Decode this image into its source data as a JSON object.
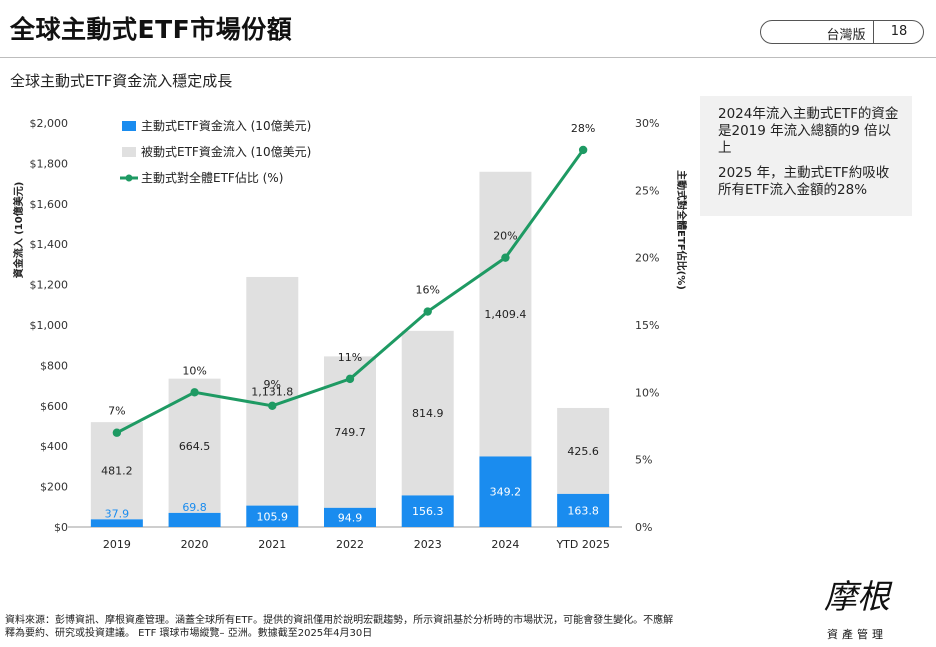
{
  "header": {
    "title": "全球主動式ETF市場份額",
    "edition": "台灣版",
    "page_number": "18"
  },
  "subtitle": "全球主動式ETF資金流入穩定成長",
  "callout": {
    "lines": [
      "2024年流入主動式ETF的資金是2019 年流入總額的9 倍以上",
      "2025 年，主動式ETF約吸收所有ETF流入金額的28%"
    ]
  },
  "source": {
    "line1": "資料來源：彭博資訊、摩根資產管理。涵蓋全球所有ETF。提供的資訊僅用於說明宏觀趨勢，所示資訊基於分析時的市場狀況，可能會發生變化。不應解",
    "line2": "釋為要約、研究或投資建議。 ETF 環球市場縱覽– 亞洲。數據截至2025年4月30日"
  },
  "logo": {
    "mark": "摩根",
    "sub": "資產管理"
  },
  "colors": {
    "active": "#1a8cef",
    "passive": "#e0e0e0",
    "line": "#1e9a63"
  },
  "chart_data": {
    "type": "bar",
    "categories": [
      "2019",
      "2020",
      "2021",
      "2022",
      "2023",
      "2024",
      "YTD 2025"
    ],
    "series": [
      {
        "name": "主動式ETF資金流入 (10億美元)",
        "kind": "stacked-bar",
        "values": [
          37.9,
          69.8,
          105.9,
          94.9,
          156.3,
          349.2,
          163.8
        ],
        "labels": [
          "37.9",
          "69.8",
          "105.9",
          "94.9",
          "156.3",
          "349.2",
          "163.8"
        ]
      },
      {
        "name": "被動式ETF資金流入 (10億美元)",
        "kind": "stacked-bar",
        "values": [
          481.2,
          664.5,
          1131.8,
          749.7,
          814.9,
          1409.4,
          425.6
        ],
        "labels": [
          "481.2",
          "664.5",
          "1,131.8",
          "749.7",
          "814.9",
          "1,409.4",
          "425.6"
        ]
      },
      {
        "name": "主動式對全體ETF佔比 (%)",
        "kind": "line",
        "axis": "right",
        "values": [
          7,
          10,
          9,
          11,
          16,
          20,
          28
        ],
        "labels": [
          "7%",
          "10%",
          "9%",
          "11%",
          "16%",
          "20%",
          "28%"
        ]
      }
    ],
    "ylabel": "資金流入 (10億美元)",
    "y2label": "主動式對全體ETF佔比(%)",
    "ylim": [
      0,
      2000
    ],
    "y2lim": [
      0,
      30
    ],
    "yticks": [
      0,
      200,
      400,
      600,
      800,
      1000,
      1200,
      1400,
      1600,
      1800,
      2000
    ],
    "yticklabels": [
      "$0",
      "$200",
      "$400",
      "$600",
      "$800",
      "$1,000",
      "$1,200",
      "$1,400",
      "$1,600",
      "$1,800",
      "$2,000"
    ],
    "y2ticks": [
      0,
      5,
      10,
      15,
      20,
      25,
      30
    ],
    "y2ticklabels": [
      "0%",
      "5%",
      "10%",
      "15%",
      "20%",
      "25%",
      "30%"
    ],
    "grid": false,
    "legend_position": "top-left"
  }
}
